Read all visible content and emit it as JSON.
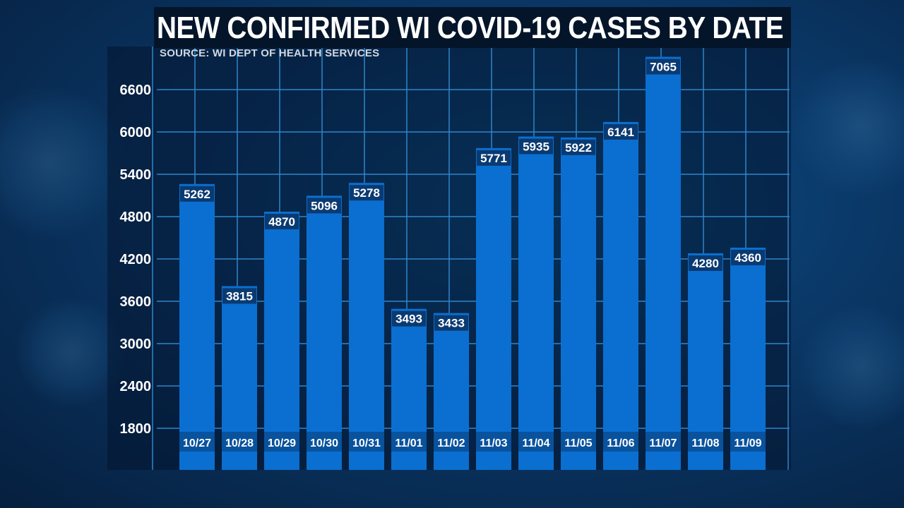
{
  "title": "NEW CONFIRMED WI COVID-19 CASES BY DATE",
  "source": "SOURCE: WI DEPT OF HEALTH SERVICES",
  "colors": {
    "bar": "#0a6fd0",
    "bar_label_bg": "#0a3a72",
    "grid": "#2f86c9",
    "text": "#ffffff"
  },
  "chart_data": {
    "type": "bar",
    "title": "NEW CONFIRMED WI COVID-19 CASES BY DATE",
    "subtitle": "SOURCE: WI DEPT OF HEALTH SERVICES",
    "categories": [
      "10/27",
      "10/28",
      "10/29",
      "10/30",
      "10/31",
      "11/01",
      "11/02",
      "11/03",
      "11/04",
      "11/05",
      "11/06",
      "11/07",
      "11/08",
      "11/09"
    ],
    "values": [
      5262,
      3815,
      4870,
      5096,
      5278,
      3493,
      3433,
      5771,
      5935,
      5922,
      6141,
      7065,
      4280,
      4360
    ],
    "yticks": [
      1800,
      2400,
      3000,
      3600,
      4200,
      4800,
      5400,
      6000,
      6600
    ],
    "ylim": [
      1200,
      7200
    ],
    "xlabel": "",
    "ylabel": "",
    "grid": true,
    "data_labels": true
  }
}
